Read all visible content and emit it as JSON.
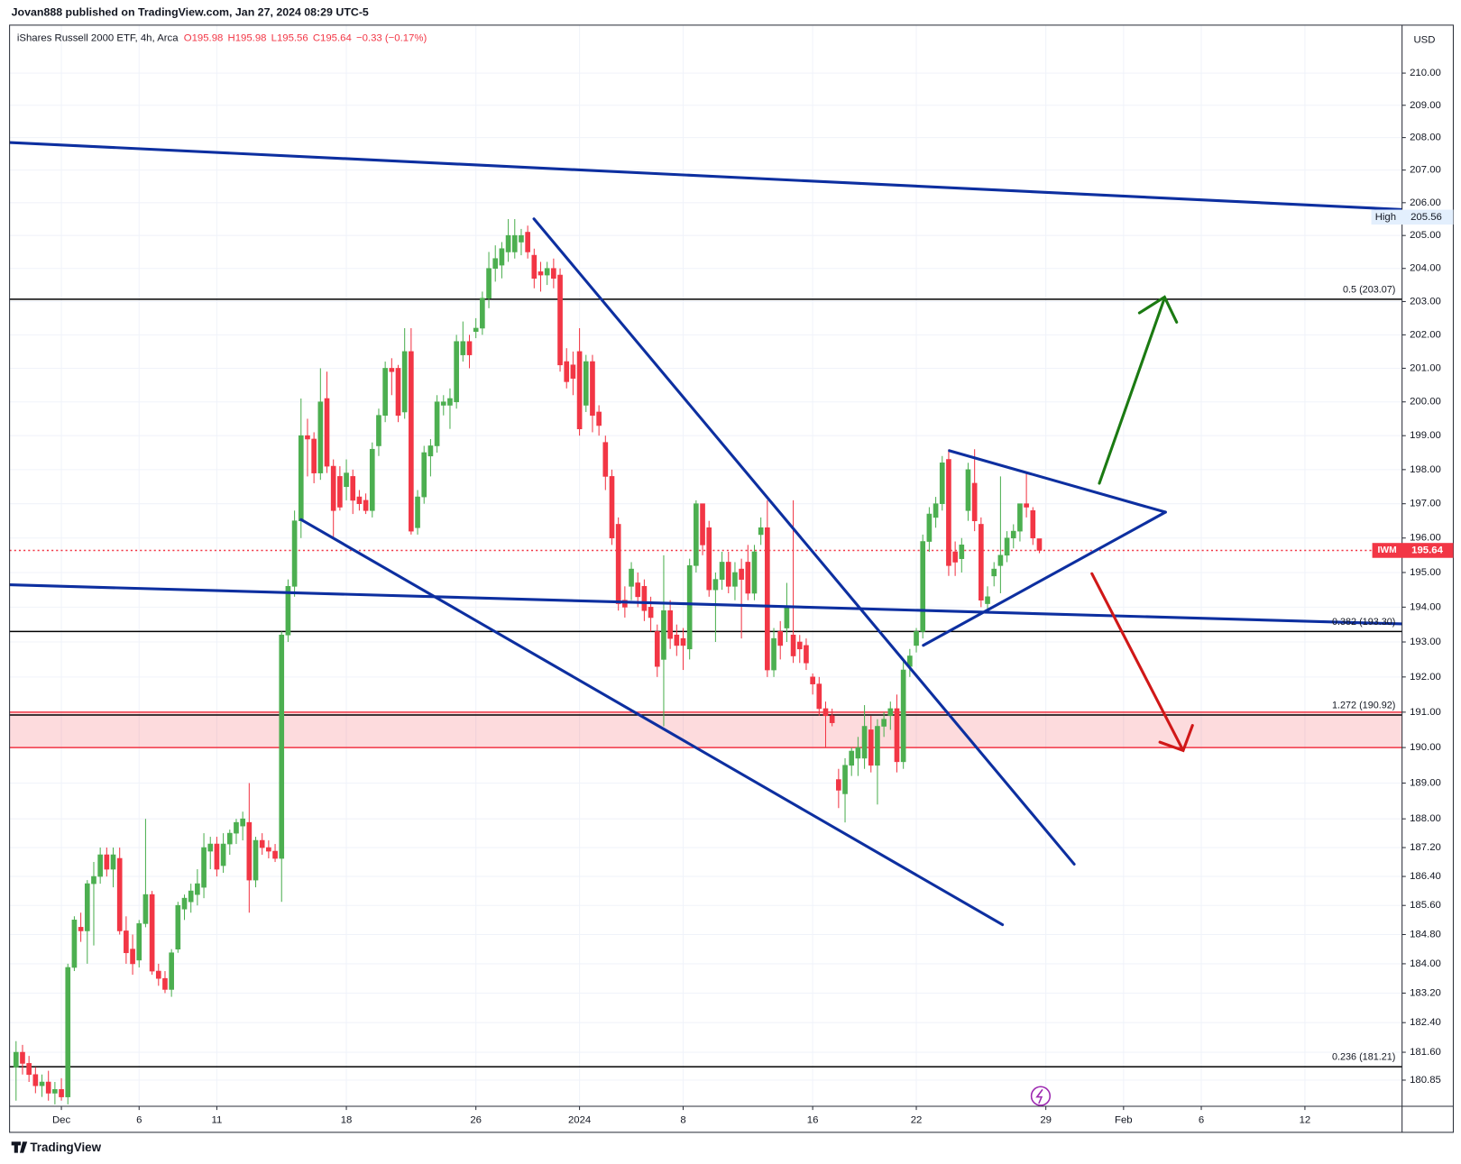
{
  "header": {
    "published": "Jovan888 published on TradingView.com, Jan 27, 2024 08:29 UTC-5"
  },
  "chart_data": {
    "type": "candlestick",
    "title": "iShares Russell 2000 ETF, 4h, Arca",
    "legend_values": [
      "O195.98",
      "H195.98",
      "L195.56",
      "C195.64",
      "−0.33 (−0.17%)"
    ],
    "currency": "USD",
    "up_color": "#4caf50",
    "down_color": "#f23645",
    "log_scale": true,
    "grid": true,
    "xlim": [
      -1,
      214
    ],
    "xticks": [
      {
        "value": 7,
        "label": "Dec"
      },
      {
        "value": 19,
        "label": "6"
      },
      {
        "value": 31,
        "label": "11"
      },
      {
        "value": 51,
        "label": "18"
      },
      {
        "value": 71,
        "label": "26"
      },
      {
        "value": 87,
        "label": "2024"
      },
      {
        "value": 103,
        "label": "8"
      },
      {
        "value": 123,
        "label": "16"
      },
      {
        "value": 139,
        "label": "22"
      },
      {
        "value": 159,
        "label": "29"
      },
      {
        "value": 171,
        "label": "Feb"
      },
      {
        "value": 183,
        "label": "6"
      },
      {
        "value": 199,
        "label": "12"
      }
    ],
    "ylim": [
      180.15,
      211.5
    ],
    "yticks": [
      {
        "value": 210,
        "label": "210.00"
      },
      {
        "value": 209,
        "label": "209.00"
      },
      {
        "value": 208,
        "label": "208.00"
      },
      {
        "value": 207,
        "label": "207.00"
      },
      {
        "value": 206,
        "label": "206.00"
      },
      {
        "value": 205,
        "label": "205.00"
      },
      {
        "value": 204,
        "label": "204.00"
      },
      {
        "value": 203,
        "label": "203.00"
      },
      {
        "value": 202,
        "label": "202.00"
      },
      {
        "value": 201,
        "label": "201.00"
      },
      {
        "value": 200,
        "label": "200.00"
      },
      {
        "value": 199,
        "label": "199.00"
      },
      {
        "value": 198,
        "label": "198.00"
      },
      {
        "value": 197,
        "label": "197.00"
      },
      {
        "value": 196,
        "label": "196.00"
      },
      {
        "value": 195,
        "label": "195.00"
      },
      {
        "value": 194,
        "label": "194.00"
      },
      {
        "value": 193,
        "label": "193.00"
      },
      {
        "value": 192,
        "label": "192.00"
      },
      {
        "value": 191,
        "label": "191.00"
      },
      {
        "value": 190,
        "label": "190.00"
      },
      {
        "value": 189,
        "label": "189.00"
      },
      {
        "value": 188,
        "label": "188.00"
      },
      {
        "value": 187.2,
        "label": "187.20"
      },
      {
        "value": 186.4,
        "label": "186.40"
      },
      {
        "value": 185.6,
        "label": "185.60"
      },
      {
        "value": 184.8,
        "label": "184.80"
      },
      {
        "value": 184,
        "label": "184.00"
      },
      {
        "value": 183.2,
        "label": "183.20"
      },
      {
        "value": 182.4,
        "label": "182.40"
      },
      {
        "value": 181.6,
        "label": "181.60"
      },
      {
        "value": 180.85,
        "label": "180.85"
      }
    ],
    "levels": [
      {
        "value": 203.07,
        "label": "0.5 (203.07)"
      },
      {
        "value": 193.3,
        "label": "0.382 (193.30)"
      },
      {
        "value": 190.92,
        "label": "1.272 (190.92)"
      },
      {
        "value": 181.21,
        "label": "0.236 (181.21)"
      }
    ],
    "zone": {
      "from": 190.0,
      "to": 191.0,
      "color": "#f23645"
    },
    "high": {
      "label": "High",
      "value": 205.56
    },
    "last_price": {
      "label": "IWM",
      "value": 195.64,
      "color": "#f23645"
    },
    "candles": [
      [
        181.2,
        181.9,
        180.3,
        181.6
      ],
      [
        181.6,
        181.8,
        181.0,
        181.3
      ],
      [
        181.3,
        181.5,
        180.8,
        181.0
      ],
      [
        181.0,
        181.2,
        180.5,
        180.7
      ],
      [
        180.7,
        181.0,
        180.4,
        180.8
      ],
      [
        180.8,
        181.1,
        180.3,
        180.5
      ],
      [
        180.5,
        180.8,
        180.2,
        180.6
      ],
      [
        180.6,
        180.9,
        180.3,
        180.4
      ],
      [
        180.4,
        184.0,
        180.2,
        183.9
      ],
      [
        183.9,
        185.3,
        183.8,
        185.2
      ],
      [
        185.0,
        185.4,
        184.6,
        184.9
      ],
      [
        184.9,
        186.3,
        184.0,
        186.2
      ],
      [
        186.2,
        186.8,
        184.5,
        186.4
      ],
      [
        186.4,
        187.2,
        186.2,
        187.0
      ],
      [
        187.0,
        187.2,
        186.4,
        186.6
      ],
      [
        186.6,
        187.2,
        186.1,
        187.0
      ],
      [
        186.9,
        187.2,
        184.8,
        184.9
      ],
      [
        184.9,
        185.3,
        184.0,
        184.3
      ],
      [
        184.4,
        184.8,
        183.7,
        184.0
      ],
      [
        184.1,
        185.2,
        183.9,
        185.1
      ],
      [
        185.1,
        188.0,
        185.0,
        185.9
      ],
      [
        185.9,
        186.0,
        183.7,
        183.8
      ],
      [
        183.8,
        184.0,
        183.4,
        183.6
      ],
      [
        183.6,
        183.8,
        183.2,
        183.3
      ],
      [
        183.3,
        184.4,
        183.1,
        184.3
      ],
      [
        184.4,
        185.7,
        184.3,
        185.6
      ],
      [
        185.5,
        185.9,
        185.2,
        185.8
      ],
      [
        185.7,
        186.2,
        185.4,
        186.0
      ],
      [
        185.9,
        186.6,
        185.6,
        186.2
      ],
      [
        186.1,
        187.6,
        185.8,
        187.2
      ],
      [
        187.1,
        187.5,
        186.6,
        187.3
      ],
      [
        187.3,
        187.5,
        186.4,
        186.6
      ],
      [
        186.7,
        187.6,
        186.5,
        187.3
      ],
      [
        187.3,
        187.7,
        187.0,
        187.6
      ],
      [
        187.6,
        188.0,
        187.3,
        187.9
      ],
      [
        187.8,
        188.2,
        187.4,
        188.0
      ],
      [
        187.9,
        189.0,
        185.4,
        186.3
      ],
      [
        186.3,
        187.5,
        186.1,
        187.4
      ],
      [
        187.4,
        187.6,
        187.0,
        187.2
      ],
      [
        187.2,
        187.4,
        186.9,
        187.1
      ],
      [
        187.1,
        187.3,
        186.8,
        186.9
      ],
      [
        186.9,
        193.3,
        185.7,
        193.2
      ],
      [
        193.2,
        194.8,
        193.0,
        194.6
      ],
      [
        194.6,
        196.8,
        194.3,
        196.5
      ],
      [
        196.5,
        200.1,
        196.0,
        199.0
      ],
      [
        199.0,
        199.5,
        197.8,
        198.9
      ],
      [
        198.9,
        199.1,
        197.6,
        197.9
      ],
      [
        197.9,
        201.0,
        197.7,
        200.0
      ],
      [
        200.1,
        200.9,
        197.9,
        198.1
      ],
      [
        198.1,
        198.3,
        196.0,
        196.8
      ],
      [
        197.8,
        198.1,
        196.8,
        196.9
      ],
      [
        197.5,
        198.3,
        197.1,
        197.9
      ],
      [
        197.8,
        198.0,
        196.7,
        197.1
      ],
      [
        197.2,
        197.4,
        196.8,
        197.0
      ],
      [
        197.1,
        197.3,
        196.7,
        196.8
      ],
      [
        196.8,
        198.8,
        196.6,
        198.6
      ],
      [
        198.7,
        199.8,
        198.4,
        199.6
      ],
      [
        199.6,
        201.2,
        199.4,
        201.0
      ],
      [
        201.0,
        201.3,
        200.2,
        200.9
      ],
      [
        201.0,
        201.1,
        199.4,
        199.6
      ],
      [
        199.7,
        202.2,
        199.5,
        201.5
      ],
      [
        201.5,
        202.2,
        196.1,
        196.2
      ],
      [
        196.3,
        197.4,
        196.1,
        197.2
      ],
      [
        197.2,
        198.7,
        197.0,
        198.5
      ],
      [
        198.4,
        198.9,
        197.8,
        198.7
      ],
      [
        198.7,
        200.2,
        198.5,
        200.0
      ],
      [
        199.9,
        200.2,
        199.6,
        200.0
      ],
      [
        199.9,
        200.4,
        199.2,
        200.1
      ],
      [
        200.0,
        202.0,
        199.8,
        201.8
      ],
      [
        201.4,
        202.4,
        201.2,
        201.8
      ],
      [
        201.8,
        202.0,
        201.0,
        201.4
      ],
      [
        202.1,
        202.5,
        201.9,
        202.2
      ],
      [
        202.2,
        203.3,
        202.0,
        203.1
      ],
      [
        203.1,
        204.5,
        202.8,
        204.0
      ],
      [
        204.0,
        204.7,
        203.6,
        204.3
      ],
      [
        204.1,
        204.8,
        203.7,
        204.6
      ],
      [
        204.5,
        205.5,
        204.2,
        205.0
      ],
      [
        204.5,
        205.5,
        204.3,
        205.0
      ],
      [
        204.8,
        205.2,
        204.4,
        205.0
      ],
      [
        205.1,
        205.3,
        204.3,
        204.5
      ],
      [
        204.4,
        204.6,
        203.4,
        203.7
      ],
      [
        203.9,
        204.2,
        203.3,
        203.8
      ],
      [
        203.8,
        204.2,
        203.5,
        204.0
      ],
      [
        204.0,
        204.3,
        203.4,
        203.7
      ],
      [
        203.8,
        204.0,
        200.9,
        201.1
      ],
      [
        201.2,
        201.6,
        200.4,
        200.6
      ],
      [
        201.1,
        201.5,
        200.2,
        200.7
      ],
      [
        201.5,
        202.2,
        199.0,
        199.2
      ],
      [
        199.9,
        201.4,
        199.7,
        201.2
      ],
      [
        201.2,
        201.4,
        199.1,
        199.6
      ],
      [
        199.7,
        199.9,
        199.0,
        199.3
      ],
      [
        198.8,
        199.0,
        197.4,
        197.8
      ],
      [
        197.8,
        198.0,
        195.8,
        196.0
      ],
      [
        196.4,
        196.6,
        193.9,
        194.1
      ],
      [
        194.2,
        194.6,
        193.7,
        194.0
      ],
      [
        194.6,
        195.3,
        194.2,
        195.1
      ],
      [
        194.7,
        195.0,
        194.0,
        194.3
      ],
      [
        194.6,
        194.8,
        193.6,
        193.9
      ],
      [
        194.0,
        194.3,
        193.3,
        193.7
      ],
      [
        193.3,
        193.5,
        192.0,
        192.3
      ],
      [
        192.5,
        195.5,
        190.6,
        193.9
      ],
      [
        193.9,
        194.2,
        192.8,
        193.1
      ],
      [
        193.2,
        193.5,
        192.6,
        192.9
      ],
      [
        193.1,
        193.4,
        192.2,
        192.9
      ],
      [
        192.8,
        195.4,
        192.5,
        195.2
      ],
      [
        195.2,
        197.1,
        195.0,
        197.0
      ],
      [
        197.0,
        197.0,
        195.5,
        195.8
      ],
      [
        196.3,
        196.5,
        194.3,
        194.5
      ],
      [
        194.5,
        195.0,
        193.0,
        194.8
      ],
      [
        194.8,
        195.6,
        194.5,
        195.3
      ],
      [
        195.3,
        195.6,
        194.4,
        194.6
      ],
      [
        194.6,
        195.3,
        194.2,
        195.0
      ],
      [
        195.1,
        195.4,
        193.1,
        194.8
      ],
      [
        195.3,
        195.8,
        194.2,
        194.4
      ],
      [
        194.4,
        195.8,
        194.2,
        195.6
      ],
      [
        196.1,
        196.6,
        195.8,
        196.3
      ],
      [
        196.3,
        197.1,
        192.0,
        192.2
      ],
      [
        192.2,
        193.4,
        192.0,
        193.1
      ],
      [
        193.3,
        193.6,
        192.5,
        192.9
      ],
      [
        193.4,
        194.7,
        193.0,
        194.0
      ],
      [
        193.2,
        197.1,
        192.4,
        192.6
      ],
      [
        193.0,
        193.2,
        192.4,
        192.8
      ],
      [
        192.9,
        193.1,
        192.2,
        192.4
      ],
      [
        192.0,
        192.1,
        191.5,
        191.8
      ],
      [
        191.8,
        192.0,
        190.9,
        191.1
      ],
      [
        191.1,
        191.3,
        190.0,
        190.9
      ],
      [
        190.9,
        191.1,
        190.6,
        190.7
      ],
      [
        189.1,
        189.4,
        188.3,
        188.8
      ],
      [
        188.7,
        189.7,
        187.9,
        189.5
      ],
      [
        189.5,
        190.0,
        189.2,
        189.9
      ],
      [
        189.7,
        190.3,
        189.2,
        190.0
      ],
      [
        189.7,
        191.2,
        189.4,
        190.6
      ],
      [
        190.5,
        190.9,
        189.3,
        189.5
      ],
      [
        189.5,
        190.8,
        188.4,
        190.6
      ],
      [
        190.6,
        191.0,
        190.3,
        190.8
      ],
      [
        190.9,
        191.3,
        190.5,
        191.1
      ],
      [
        191.1,
        191.5,
        189.3,
        189.6
      ],
      [
        189.6,
        192.5,
        189.4,
        192.2
      ],
      [
        192.3,
        192.8,
        192.0,
        192.6
      ],
      [
        192.9,
        193.4,
        192.7,
        193.3
      ],
      [
        193.3,
        196.1,
        193.1,
        195.9
      ],
      [
        195.9,
        196.9,
        195.6,
        196.7
      ],
      [
        196.6,
        197.2,
        196.3,
        197.0
      ],
      [
        197.0,
        198.4,
        196.8,
        198.2
      ],
      [
        198.3,
        198.6,
        194.9,
        195.2
      ],
      [
        195.6,
        195.9,
        194.9,
        195.3
      ],
      [
        195.4,
        196.0,
        195.0,
        195.8
      ],
      [
        196.8,
        198.2,
        196.5,
        198.0
      ],
      [
        197.6,
        198.6,
        196.2,
        196.5
      ],
      [
        196.4,
        196.6,
        194.0,
        194.2
      ],
      [
        194.1,
        194.6,
        193.9,
        194.3
      ],
      [
        194.9,
        195.3,
        194.6,
        195.1
      ],
      [
        195.2,
        197.8,
        194.4,
        195.5
      ],
      [
        195.5,
        196.2,
        195.3,
        196.0
      ],
      [
        196.0,
        196.4,
        195.7,
        196.2
      ],
      [
        196.2,
        197.0,
        195.9,
        197.0
      ],
      [
        197.0,
        197.9,
        196.6,
        196.9
      ],
      [
        196.8,
        196.9,
        195.8,
        196.0
      ],
      [
        195.98,
        195.98,
        195.56,
        195.64
      ]
    ]
  },
  "footer": {
    "brand": "TradingView"
  }
}
